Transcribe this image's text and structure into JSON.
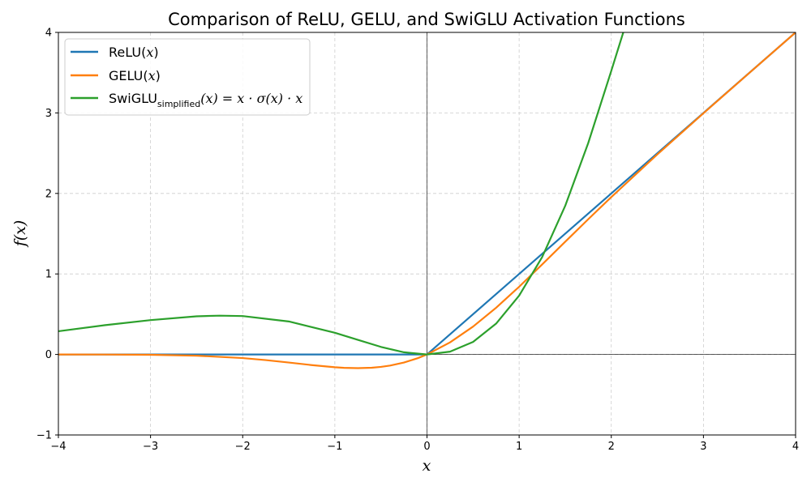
{
  "chart_data": {
    "type": "line",
    "title": "Comparison of ReLU, GELU, and SwiGLU Activation Functions",
    "xlabel": "x",
    "ylabel": "f(x)",
    "xlim": [
      -4,
      4
    ],
    "ylim": [
      -1,
      4
    ],
    "xticks": [
      -4,
      -3,
      -2,
      -1,
      0,
      1,
      2,
      3,
      4
    ],
    "yticks": [
      -1,
      0,
      1,
      2,
      3,
      4
    ],
    "xtick_labels": [
      "−4",
      "−3",
      "−2",
      "−1",
      "0",
      "1",
      "2",
      "3",
      "4"
    ],
    "ytick_labels": [
      "−1",
      "0",
      "1",
      "2",
      "3",
      "4"
    ],
    "grid": true,
    "legend_position": "top-left",
    "series": [
      {
        "name": "ReLU(x)",
        "legend": {
          "main": "ReLU(",
          "var": "x",
          "close": ")"
        },
        "color": "#1f77b4",
        "x": [
          -4,
          -3,
          -2,
          -1,
          0,
          1,
          2,
          3,
          4
        ],
        "y": [
          0,
          0,
          0,
          0,
          0,
          1,
          2,
          3,
          4
        ]
      },
      {
        "name": "GELU(x)",
        "legend": {
          "main": "GELU(",
          "var": "x",
          "close": ")"
        },
        "color": "#ff7f0e",
        "x": [
          -4.0,
          -3.5,
          -3.0,
          -2.5,
          -2.0,
          -1.75,
          -1.5,
          -1.25,
          -1.0,
          -0.9,
          -0.75,
          -0.6,
          -0.5,
          -0.4,
          -0.25,
          -0.1,
          0.0,
          0.25,
          0.5,
          0.75,
          1.0,
          1.25,
          1.5,
          1.75,
          2.0,
          2.5,
          3.0,
          3.5,
          4.0
        ],
        "y": [
          0.0,
          -0.001,
          -0.004,
          -0.015,
          -0.045,
          -0.07,
          -0.1,
          -0.132,
          -0.159,
          -0.166,
          -0.17,
          -0.165,
          -0.154,
          -0.138,
          -0.1,
          -0.046,
          0.0,
          0.15,
          0.346,
          0.58,
          0.841,
          1.118,
          1.4,
          1.68,
          1.955,
          2.485,
          2.996,
          3.499,
          4.0
        ]
      },
      {
        "name": "SwiGLU_simplified(x) = x·σ(x)·x",
        "legend": {
          "main": "SwiGLU",
          "sub": "simplified",
          "expr": "(x) = x · σ(x) · x"
        },
        "color": "#2ca02c",
        "x": [
          -4.0,
          -3.5,
          -3.0,
          -2.5,
          -2.25,
          -2.0,
          -1.5,
          -1.0,
          -0.75,
          -0.5,
          -0.25,
          0.0,
          0.25,
          0.5,
          0.75,
          1.0,
          1.25,
          1.5,
          1.75,
          2.0,
          2.13
        ],
        "y": [
          0.288,
          0.363,
          0.427,
          0.474,
          0.482,
          0.477,
          0.41,
          0.269,
          0.181,
          0.094,
          0.0273,
          0.0,
          0.0352,
          0.156,
          0.383,
          0.731,
          1.21,
          1.846,
          2.627,
          3.523,
          4.0
        ]
      }
    ]
  }
}
